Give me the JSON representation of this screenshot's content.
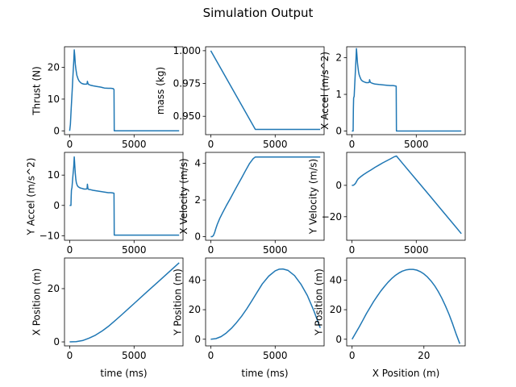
{
  "figure": {
    "title": "Simulation Output",
    "line_color": "#1f77b4"
  },
  "chart_data": [
    {
      "type": "line",
      "id": "thrust",
      "xlabel": "",
      "ylabel": "Thrust (N)",
      "xlim": [
        -400,
        8800
      ],
      "ylim": [
        -1.2,
        26.5
      ],
      "xticks": [
        0,
        5000
      ],
      "yticks": [
        0,
        10,
        20
      ],
      "xticklabels": [
        "0",
        "5000"
      ],
      "yticklabels": [
        "0",
        "10",
        "20"
      ],
      "x": [
        0,
        60,
        120,
        200,
        260,
        320,
        360,
        400,
        440,
        480,
        520,
        560,
        600,
        660,
        720,
        800,
        880,
        960,
        1040,
        1120,
        1200,
        1280,
        1350,
        1380,
        1420,
        1480,
        1600,
        1800,
        2100,
        2400,
        2700,
        3000,
        3200,
        3380,
        3440,
        3460,
        4000,
        5000,
        6000,
        7000,
        8000,
        8500
      ],
      "y": [
        0,
        2,
        7,
        13,
        17.5,
        22,
        25.5,
        23.5,
        21,
        19.5,
        18.5,
        17.5,
        17,
        16.3,
        15.8,
        15.4,
        15.1,
        14.9,
        14.8,
        14.7,
        14.7,
        14.7,
        14.8,
        15.6,
        14.9,
        14.6,
        14.4,
        14.2,
        14,
        13.8,
        13.5,
        13.4,
        13.4,
        13.3,
        13,
        0,
        0,
        0,
        0,
        0,
        0,
        0
      ]
    },
    {
      "type": "line",
      "id": "mass",
      "xlabel": "",
      "ylabel": "mass (kg)",
      "xlim": [
        -400,
        8800
      ],
      "ylim": [
        0.936,
        1.003
      ],
      "xticks": [
        0,
        5000
      ],
      "yticks": [
        0.95,
        0.975,
        1.0
      ],
      "xticklabels": [
        "0",
        "5000"
      ],
      "yticklabels": [
        "0.950",
        "0.975",
        "1.000"
      ],
      "x": [
        0,
        3460,
        8500
      ],
      "y": [
        1.0,
        0.94,
        0.94
      ]
    },
    {
      "type": "line",
      "id": "xaccel",
      "xlabel": "",
      "ylabel": "X Accel (m/s^2)",
      "xlim": [
        -400,
        8800
      ],
      "ylim": [
        -0.1,
        2.3
      ],
      "xticks": [
        0,
        5000
      ],
      "yticks": [
        0,
        1,
        2
      ],
      "xticklabels": [
        "0",
        "5000"
      ],
      "yticklabels": [
        "0",
        "1",
        "2"
      ],
      "x": [
        0,
        40,
        80,
        100,
        120,
        140,
        180,
        200,
        260,
        320,
        360,
        400,
        440,
        480,
        520,
        560,
        600,
        660,
        720,
        800,
        880,
        960,
        1040,
        1120,
        1200,
        1280,
        1350,
        1380,
        1420,
        1480,
        1600,
        1800,
        2100,
        2400,
        2700,
        3000,
        3200,
        3380,
        3440,
        3460,
        4000,
        5000,
        6000,
        7000,
        8000,
        8500
      ],
      "y": [
        0,
        0,
        0,
        0,
        0.6,
        0.9,
        0.95,
        1.1,
        1.5,
        1.95,
        2.25,
        2.05,
        1.85,
        1.72,
        1.62,
        1.55,
        1.5,
        1.45,
        1.4,
        1.37,
        1.35,
        1.34,
        1.33,
        1.32,
        1.32,
        1.32,
        1.33,
        1.4,
        1.34,
        1.32,
        1.3,
        1.28,
        1.27,
        1.26,
        1.25,
        1.24,
        1.24,
        1.23,
        1.22,
        0,
        0,
        0,
        0,
        0,
        0,
        0
      ]
    },
    {
      "type": "line",
      "id": "yaccel",
      "xlabel": "",
      "ylabel": "Y Accel (m/s^2)",
      "xlim": [
        -400,
        8800
      ],
      "ylim": [
        -11.5,
        17.5
      ],
      "xticks": [
        0,
        5000
      ],
      "yticks": [
        -10,
        0,
        10
      ],
      "xticklabels": [
        "0",
        "5000"
      ],
      "yticklabels": [
        "−10",
        "0",
        "10"
      ],
      "x": [
        0,
        40,
        80,
        100,
        120,
        140,
        180,
        200,
        260,
        320,
        360,
        400,
        440,
        480,
        520,
        560,
        600,
        660,
        720,
        800,
        880,
        960,
        1040,
        1120,
        1200,
        1280,
        1350,
        1380,
        1420,
        1480,
        1600,
        1800,
        2100,
        2400,
        2700,
        3000,
        3200,
        3380,
        3440,
        3460,
        4000,
        5000,
        6000,
        7000,
        8000,
        8500
      ],
      "y": [
        0,
        0,
        0,
        0,
        3,
        5,
        6,
        7,
        10,
        13,
        16,
        13,
        10.5,
        8.5,
        7.5,
        7,
        6.5,
        6.2,
        6,
        5.8,
        5.7,
        5.6,
        5.5,
        5.4,
        5.4,
        5.4,
        5.5,
        7,
        5.5,
        5.3,
        5.2,
        5,
        4.8,
        4.6,
        4.4,
        4.2,
        4.2,
        4.1,
        4,
        -9.8,
        -9.8,
        -9.8,
        -9.8,
        -9.8,
        -9.8,
        -9.8
      ]
    },
    {
      "type": "line",
      "id": "xvel",
      "xlabel": "",
      "ylabel": "X Velocity (m/s)",
      "xlim": [
        -400,
        8800
      ],
      "ylim": [
        -0.2,
        4.6
      ],
      "xticks": [
        0,
        5000
      ],
      "yticks": [
        0,
        2,
        4
      ],
      "xticklabels": [
        "0",
        "5000"
      ],
      "yticklabels": [
        "0",
        "2",
        "4"
      ],
      "x": [
        0,
        100,
        200,
        300,
        400,
        500,
        700,
        900,
        1200,
        1500,
        1800,
        2100,
        2400,
        2700,
        3000,
        3300,
        3460,
        4000,
        5000,
        6000,
        7000,
        8000,
        8500
      ],
      "y": [
        0,
        0,
        0.05,
        0.22,
        0.45,
        0.66,
        1.0,
        1.28,
        1.68,
        2.06,
        2.45,
        2.83,
        3.21,
        3.6,
        3.98,
        4.26,
        4.35,
        4.35,
        4.35,
        4.35,
        4.35,
        4.35,
        4.35
      ]
    },
    {
      "type": "line",
      "id": "yvel",
      "xlabel": "",
      "ylabel": "Y Velocity (m/s)",
      "xlim": [
        -400,
        8800
      ],
      "ylim": [
        -35,
        21
      ],
      "xticks": [
        0,
        5000
      ],
      "yticks": [
        -20,
        0
      ],
      "xticklabels": [
        "0",
        "5000"
      ],
      "yticklabels": [
        "−20",
        "0"
      ],
      "x": [
        0,
        100,
        200,
        300,
        400,
        500,
        700,
        900,
        1200,
        1500,
        1800,
        2100,
        2400,
        2700,
        3000,
        3300,
        3460,
        4000,
        5000,
        6000,
        7000,
        8000,
        8500
      ],
      "y": [
        0,
        0,
        0.5,
        1.5,
        3,
        4.2,
        5.6,
        6.8,
        8.4,
        9.9,
        11.5,
        12.9,
        14.3,
        15.6,
        16.9,
        18.2,
        18.7,
        13.4,
        3.6,
        -6.2,
        -16,
        -25.8,
        -30.8
      ]
    },
    {
      "type": "line",
      "id": "xpos",
      "xlabel": "time (ms)",
      "ylabel": "X Position (m)",
      "xlim": [
        -400,
        8800
      ],
      "ylim": [
        -1.5,
        31.5
      ],
      "xticks": [
        0,
        5000
      ],
      "yticks": [
        0,
        20
      ],
      "xticklabels": [
        "0",
        "5000"
      ],
      "yticklabels": [
        "0",
        "20"
      ],
      "x": [
        0,
        500,
        1000,
        1500,
        2000,
        2500,
        3000,
        3460,
        4000,
        5000,
        6000,
        7000,
        8000,
        8500
      ],
      "y": [
        0,
        0.1,
        0.5,
        1.4,
        2.5,
        4,
        5.8,
        7.7,
        10,
        14.4,
        18.8,
        23.1,
        27.5,
        29.7
      ]
    },
    {
      "type": "line",
      "id": "ypos",
      "xlabel": "time (ms)",
      "ylabel": "Y Position (m)",
      "xlim": [
        -400,
        8800
      ],
      "ylim": [
        -4.5,
        55
      ],
      "xticks": [
        0,
        5000
      ],
      "yticks": [
        0,
        20,
        40
      ],
      "xticklabels": [
        "0",
        "5000"
      ],
      "yticklabels": [
        "0",
        "20",
        "40"
      ],
      "x": [
        0,
        400,
        800,
        1200,
        1600,
        2000,
        2400,
        2800,
        3200,
        3460,
        4000,
        4500,
        5000,
        5300,
        5600,
        6000,
        6500,
        7000,
        7500,
        8000,
        8500
      ],
      "y": [
        0,
        0.4,
        1.8,
        4.2,
        7.4,
        11.2,
        15.6,
        20.6,
        26.1,
        29.9,
        37.4,
        42.7,
        46.3,
        47.4,
        47.6,
        46.6,
        43.1,
        37.3,
        29.6,
        19.4,
        7.7
      ]
    },
    {
      "type": "line",
      "id": "traj",
      "xlabel": "X Position (m)",
      "ylabel": "Y Position (m)",
      "xlim": [
        -1.5,
        31.5
      ],
      "ylim": [
        -4.5,
        55
      ],
      "xticks": [
        0,
        20
      ],
      "yticks": [
        0,
        20,
        40
      ],
      "xticklabels": [
        "0",
        "20"
      ],
      "yticklabels": [
        "0",
        "20",
        "40"
      ],
      "x": [
        0,
        1,
        2,
        3,
        4,
        5,
        6,
        7,
        8,
        9,
        10,
        11,
        12,
        13,
        14,
        15,
        16,
        17,
        18,
        19,
        20,
        21,
        22,
        23,
        24,
        25,
        26,
        27,
        28,
        29,
        30
      ],
      "y": [
        0,
        4.2,
        8.4,
        12.8,
        17.4,
        21.5,
        25.5,
        29.2,
        32.6,
        35.7,
        38.5,
        41,
        43.1,
        44.8,
        46.1,
        46.9,
        47.3,
        47.3,
        46.8,
        45.8,
        44.2,
        42.1,
        39.4,
        36.2,
        32.3,
        27.8,
        22.6,
        16.8,
        10.4,
        3.3,
        -3
      ]
    }
  ]
}
